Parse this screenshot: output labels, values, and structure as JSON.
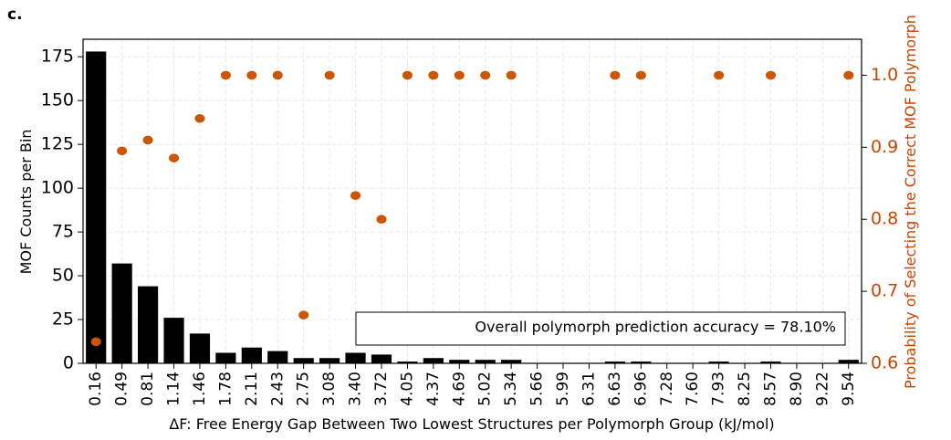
{
  "panel_label": "c.",
  "chart_data": {
    "type": "bar",
    "xlabel": "ΔF: Free Energy Gap Between Two Lowest Structures per Polymorph Group (kJ/mol)",
    "ylabel": "MOF Counts per Bin",
    "ylabel_right": "Probability of Selecting the Correct MOF Polymorph",
    "categories": [
      "0.16",
      "0.49",
      "0.81",
      "1.14",
      "1.46",
      "1.78",
      "2.11",
      "2.43",
      "2.75",
      "3.08",
      "3.40",
      "3.72",
      "4.05",
      "4.37",
      "4.69",
      "5.02",
      "5.34",
      "5.66",
      "5.99",
      "6.31",
      "6.63",
      "6.96",
      "7.28",
      "7.60",
      "7.93",
      "8.25",
      "8.57",
      "8.90",
      "9.22",
      "9.54"
    ],
    "ylim": [
      0,
      185
    ],
    "yticks": [
      "0",
      "25",
      "50",
      "75",
      "100",
      "125",
      "150",
      "175"
    ],
    "ylim_right": [
      0.6,
      1.05
    ],
    "yticks_right": [
      "0.6",
      "0.7",
      "0.8",
      "0.9",
      "1.0"
    ],
    "grid": true,
    "series": [
      {
        "axis": "left",
        "kind": "bar",
        "color": "#000000",
        "values": [
          178,
          57,
          44,
          26,
          17,
          6,
          9,
          7,
          3,
          3,
          6,
          5,
          1,
          3,
          2,
          2,
          2,
          0,
          0,
          0,
          1,
          1,
          0,
          0,
          1,
          0,
          1,
          0,
          0,
          2
        ]
      },
      {
        "axis": "right",
        "kind": "scatter",
        "color": "#cc5500",
        "values": [
          0.63,
          0.895,
          0.91,
          0.885,
          0.94,
          1.0,
          1.0,
          1.0,
          0.667,
          1.0,
          0.833,
          0.8,
          1.0,
          1.0,
          1.0,
          1.0,
          1.0,
          null,
          null,
          null,
          1.0,
          1.0,
          null,
          null,
          1.0,
          null,
          1.0,
          null,
          null,
          1.0
        ]
      }
    ],
    "annotation": "Overall polymorph prediction accuracy = 78.10%"
  }
}
